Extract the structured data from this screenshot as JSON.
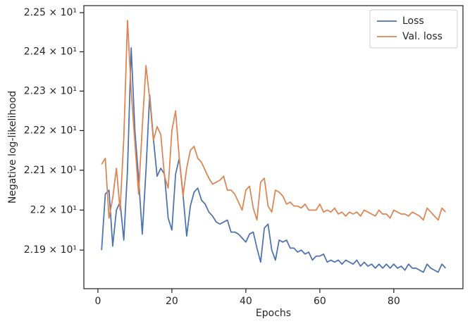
{
  "chart_data": {
    "type": "line",
    "xlabel": "Epochs",
    "ylabel": "Negative log-likelihood",
    "x": [
      1,
      2,
      3,
      4,
      5,
      6,
      7,
      8,
      9,
      10,
      11,
      12,
      13,
      14,
      15,
      16,
      17,
      18,
      19,
      20,
      21,
      22,
      23,
      24,
      25,
      26,
      27,
      28,
      29,
      30,
      31,
      32,
      33,
      34,
      35,
      36,
      37,
      38,
      39,
      40,
      41,
      42,
      43,
      44,
      45,
      46,
      47,
      48,
      49,
      50,
      51,
      52,
      53,
      54,
      55,
      56,
      57,
      58,
      59,
      60,
      61,
      62,
      63,
      64,
      65,
      66,
      67,
      68,
      69,
      70,
      71,
      72,
      73,
      74,
      75,
      76,
      77,
      78,
      79,
      80,
      81,
      82,
      83,
      84,
      85,
      86,
      87,
      88,
      89,
      90,
      91,
      92,
      93,
      94
    ],
    "series": [
      {
        "name": "Loss",
        "color": "#4c72b0",
        "values": [
          21.9,
          22.04,
          22.05,
          21.91,
          22.0,
          22.02,
          21.925,
          22.1,
          22.41,
          22.2,
          22.08,
          21.94,
          22.1,
          22.29,
          22.18,
          22.085,
          22.105,
          22.09,
          21.98,
          21.95,
          22.09,
          22.13,
          22.04,
          21.935,
          22.01,
          22.045,
          22.055,
          22.025,
          22.015,
          21.995,
          21.985,
          21.97,
          21.965,
          21.97,
          21.975,
          21.945,
          21.945,
          21.94,
          21.93,
          21.92,
          21.94,
          21.945,
          21.905,
          21.87,
          21.955,
          21.965,
          21.9,
          21.875,
          21.925,
          21.92,
          21.925,
          21.905,
          21.905,
          21.895,
          21.9,
          21.89,
          21.895,
          21.875,
          21.885,
          21.885,
          21.89,
          21.87,
          21.875,
          21.87,
          21.875,
          21.865,
          21.875,
          21.87,
          21.865,
          21.875,
          21.86,
          21.87,
          21.86,
          21.865,
          21.855,
          21.865,
          21.855,
          21.865,
          21.855,
          21.865,
          21.855,
          21.86,
          21.85,
          21.865,
          21.855,
          21.855,
          21.85,
          21.845,
          21.865,
          21.855,
          21.85,
          21.845,
          21.865,
          21.855
        ]
      },
      {
        "name": "Val. loss",
        "color": "#dd8452",
        "values": [
          22.115,
          22.13,
          21.98,
          22.03,
          22.105,
          22.0,
          22.18,
          22.48,
          22.3,
          22.17,
          22.04,
          22.21,
          22.365,
          22.28,
          22.175,
          22.21,
          22.19,
          22.085,
          22.055,
          22.2,
          22.25,
          22.13,
          22.035,
          22.105,
          22.15,
          22.16,
          22.13,
          22.12,
          22.1,
          22.08,
          22.065,
          22.07,
          22.075,
          22.085,
          22.05,
          22.05,
          22.04,
          22.02,
          22.0,
          22.05,
          22.06,
          22.005,
          21.975,
          22.07,
          22.08,
          22.01,
          21.995,
          22.05,
          22.045,
          22.035,
          22.015,
          22.02,
          22.01,
          22.01,
          22.005,
          22.015,
          22.0,
          22.0,
          22.0,
          22.015,
          21.995,
          22.0,
          21.995,
          22.005,
          21.99,
          21.995,
          21.985,
          21.995,
          21.99,
          21.995,
          21.985,
          22.0,
          21.995,
          21.99,
          21.985,
          22.0,
          21.99,
          21.99,
          21.98,
          22.0,
          21.995,
          21.99,
          21.99,
          21.985,
          21.995,
          21.99,
          21.985,
          21.975,
          22.005,
          21.995,
          21.985,
          21.975,
          22.005,
          21.995
        ]
      }
    ],
    "xlim": [
      -3.8,
      98.7
    ],
    "xticks": [
      0,
      20,
      40,
      60,
      80
    ],
    "ylim": [
      21.804,
      22.518
    ],
    "ylog": true,
    "yticks": [
      {
        "value": 21.9,
        "label": "2.19 × 10¹"
      },
      {
        "value": 22.0,
        "label": "2.2 × 10¹"
      },
      {
        "value": 22.1,
        "label": "2.21 × 10¹"
      },
      {
        "value": 22.2,
        "label": "2.22 × 10¹"
      },
      {
        "value": 22.3,
        "label": "2.23 × 10¹"
      },
      {
        "value": 22.4,
        "label": "2.24 × 10¹"
      },
      {
        "value": 22.5,
        "label": "2.25 × 10¹"
      }
    ],
    "legend": "upper right",
    "grid": false
  }
}
